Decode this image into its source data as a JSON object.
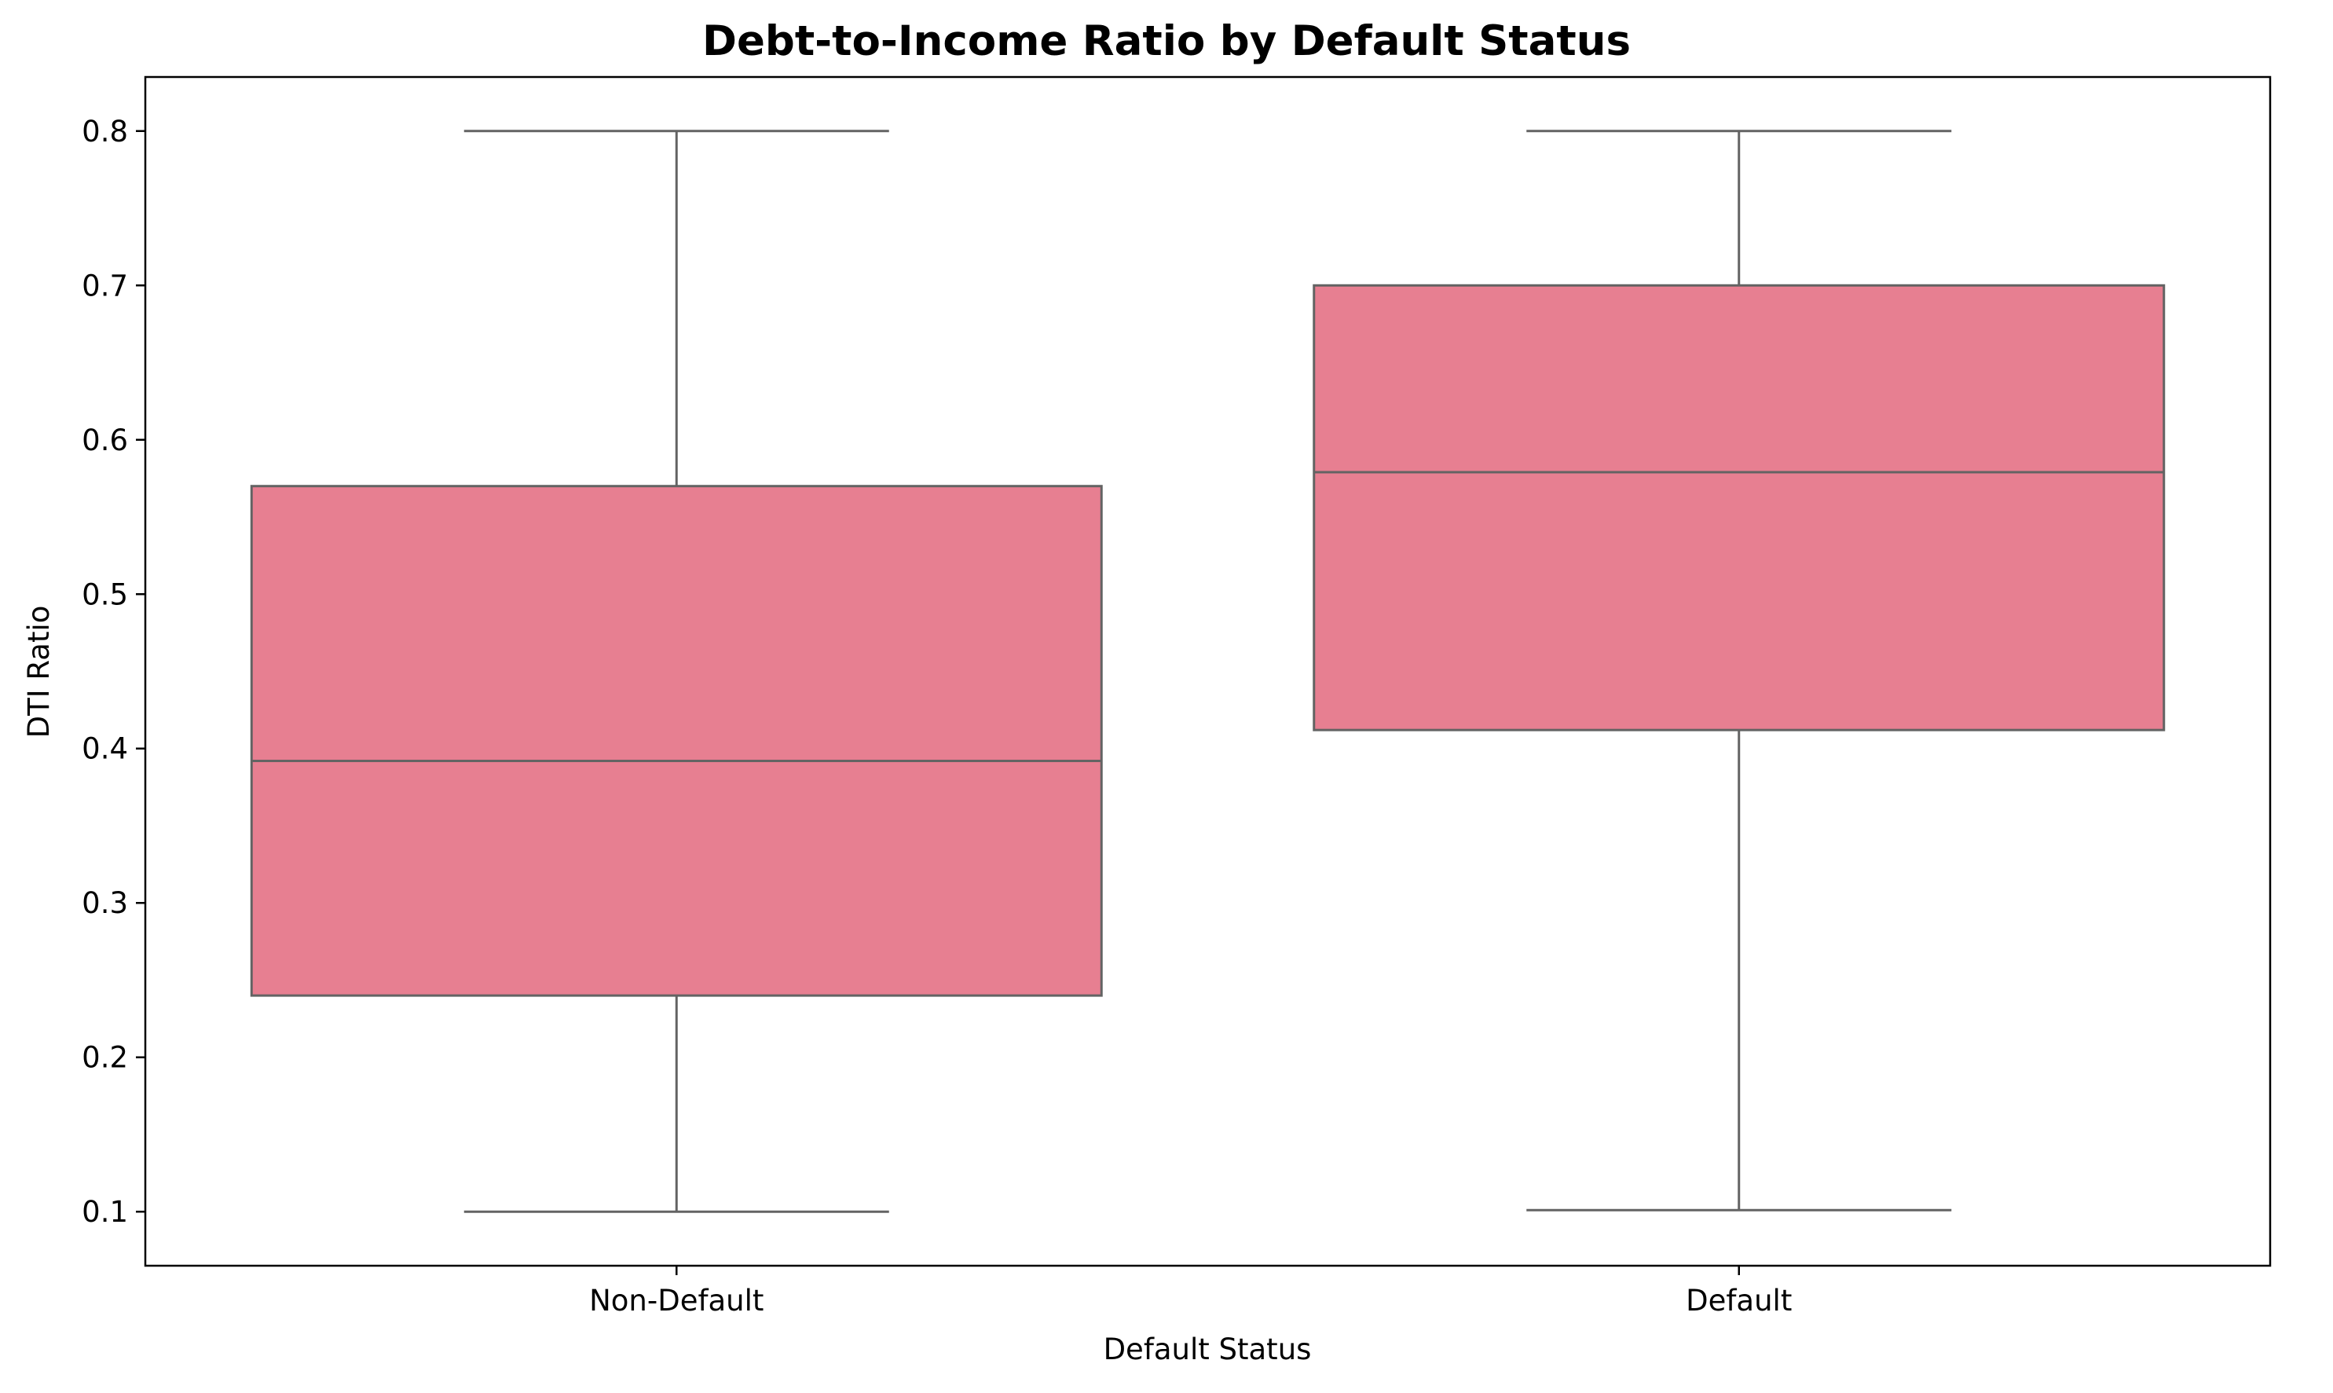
{
  "chart_data": {
    "type": "box",
    "title": "Debt-to-Income Ratio by Default Status",
    "xlabel": "Default Status",
    "ylabel": "DTI Ratio",
    "categories": [
      "Non-Default",
      "Default"
    ],
    "boxes": [
      {
        "category": "Non-Default",
        "whisker_low": 0.1,
        "q1": 0.24,
        "median": 0.392,
        "q3": 0.57,
        "whisker_high": 0.8
      },
      {
        "category": "Default",
        "whisker_low": 0.101,
        "q1": 0.412,
        "median": 0.579,
        "q3": 0.7,
        "whisker_high": 0.8
      }
    ],
    "y_ticks": [
      "0.1",
      "0.2",
      "0.3",
      "0.4",
      "0.5",
      "0.6",
      "0.7",
      "0.8"
    ],
    "ylim": [
      0.065,
      0.835
    ],
    "grid": false,
    "colors": {
      "box_fill": "#e77f91",
      "line": "#636363",
      "axis": "#000000"
    }
  }
}
